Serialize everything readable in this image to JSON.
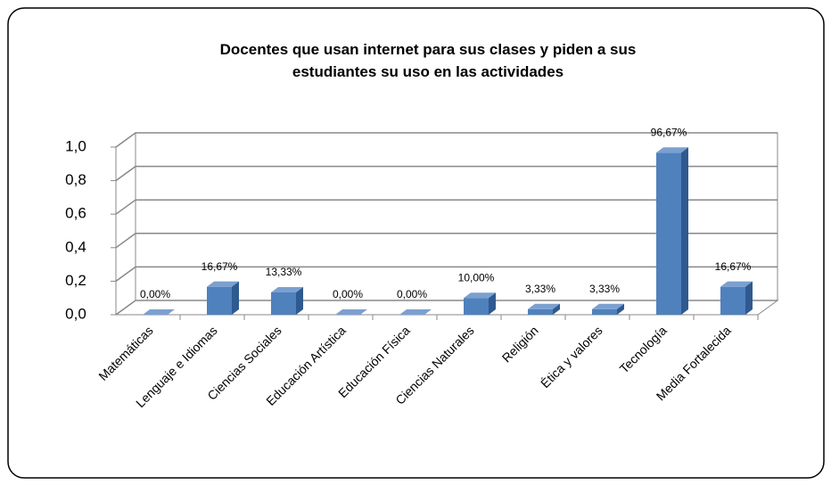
{
  "chart_data": {
    "type": "bar",
    "title": "Docentes que usan internet para sus clases y piden a sus estudiantes su uso en las actividades",
    "categories": [
      "Matemáticas",
      "Lenguaje e Idiomas",
      "Ciencias Sociales",
      "Educación Artística",
      "Educación Física",
      "Ciencias Naturales",
      "Religión",
      "Ética y valores",
      "Tecnología",
      "Media Fortalecida"
    ],
    "values": [
      0,
      0.1667,
      0.1333,
      0,
      0,
      0.1,
      0.0333,
      0.0333,
      0.9667,
      0.1667
    ],
    "value_labels": [
      "0,00%",
      "16,67%",
      "13,33%",
      "0,00%",
      "0,00%",
      "10,00%",
      "3,33%",
      "3,33%",
      "96,67%",
      "16,67%"
    ],
    "color": "#4f81bd",
    "ylim": [
      0,
      1
    ],
    "yticks": [
      {
        "value": 0,
        "label": "0,0"
      },
      {
        "value": 0.2,
        "label": "0,2"
      },
      {
        "value": 0.4,
        "label": "0,4"
      },
      {
        "value": 0.6,
        "label": "0,6"
      },
      {
        "value": 0.8,
        "label": "0,8"
      },
      {
        "value": 1,
        "label": "1,0"
      }
    ],
    "grid": true
  }
}
